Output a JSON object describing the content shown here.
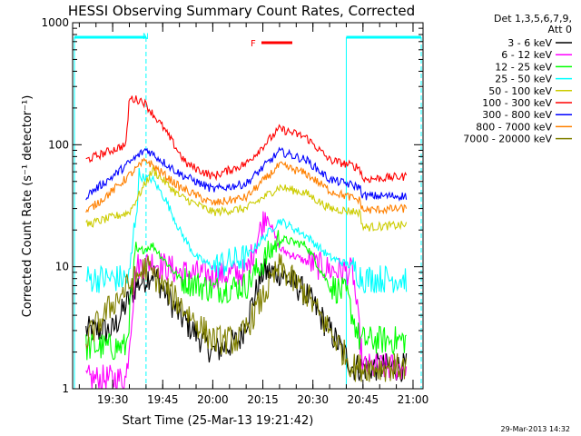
{
  "chart_data": {
    "type": "line",
    "title": "HESSI Observing Summary Count Rates, Corrected",
    "xlabel": "Start Time (25-Mar-13 19:21:42)",
    "ylabel": "Corrected Count Rate (s⁻¹ detector⁻¹)",
    "yscale": "log",
    "ylim": [
      1,
      1000
    ],
    "xlim_minutes": [
      19.3,
      21.05
    ],
    "x_ticks": [
      "19:30",
      "19:45",
      "20:00",
      "20:15",
      "20:30",
      "20:45",
      "21:00"
    ],
    "y_ticks": [
      "1",
      "10",
      "100",
      "1000"
    ],
    "legend_header": [
      "Det 1,3,5,6,7,9,",
      "Att 0"
    ],
    "flags": {
      "N": "N",
      "F": "F"
    },
    "timestamp": "29-Mar-2013 14:32",
    "series": [
      {
        "name": "3 - 6 keV",
        "color": "#000000",
        "x": [
          "19:22",
          "19:30",
          "19:37",
          "19:42",
          "19:50",
          "20:00",
          "20:08",
          "20:15",
          "20:20",
          "20:28",
          "20:35",
          "20:42",
          "20:50",
          "20:58"
        ],
        "values": [
          3,
          3,
          7,
          9,
          4,
          2,
          2.5,
          9,
          9,
          6,
          3,
          1.5,
          1.5,
          1.5
        ]
      },
      {
        "name": "6 - 12 keV",
        "color": "#ff00ff",
        "x": [
          "19:22",
          "19:34",
          "19:37",
          "19:42",
          "19:50",
          "20:00",
          "20:10",
          "20:16",
          "20:20",
          "20:28",
          "20:35",
          "20:42",
          "20:45",
          "20:58"
        ],
        "values": [
          1.2,
          1.2,
          10,
          11,
          9,
          8.5,
          9,
          28,
          14,
          11,
          9.5,
          9,
          1.5,
          1.5
        ]
      },
      {
        "name": "12 - 25 keV",
        "color": "#00ff00",
        "x": [
          "19:22",
          "19:34",
          "19:37",
          "19:42",
          "19:50",
          "20:00",
          "20:10",
          "20:20",
          "20:28",
          "20:35",
          "20:40",
          "20:44",
          "20:58"
        ],
        "values": [
          2.2,
          2.2,
          13,
          15,
          8,
          6.5,
          7,
          17,
          15,
          7,
          6,
          2.5,
          2.5
        ]
      },
      {
        "name": "25 - 50 keV",
        "color": "#00ffff",
        "x": [
          "19:22",
          "19:35",
          "19:38",
          "19:42",
          "19:46",
          "19:50",
          "19:55",
          "20:00",
          "20:10",
          "20:20",
          "20:28",
          "20:35",
          "20:42",
          "20:45",
          "20:58"
        ],
        "values": [
          8,
          8,
          55,
          52,
          35,
          20,
          12,
          10,
          12,
          24,
          18,
          12,
          10,
          8,
          8
        ]
      },
      {
        "name": "50 - 100 keV",
        "color": "#cccc00",
        "x": [
          "19:22",
          "19:35",
          "19:42",
          "19:50",
          "20:00",
          "20:10",
          "20:20",
          "20:28",
          "20:35",
          "20:44",
          "20:45",
          "20:58"
        ],
        "values": [
          22,
          28,
          62,
          38,
          28,
          30,
          45,
          40,
          30,
          28,
          21,
          22
        ]
      },
      {
        "name": "100 - 300 keV",
        "color": "#ff0000",
        "x": [
          "19:22",
          "19:34",
          "19:35",
          "19:39",
          "19:45",
          "19:52",
          "20:00",
          "20:10",
          "20:20",
          "20:28",
          "20:35",
          "20:44",
          "20:45",
          "20:58"
        ],
        "values": [
          75,
          100,
          240,
          230,
          140,
          70,
          55,
          70,
          135,
          115,
          75,
          65,
          52,
          55
        ]
      },
      {
        "name": "300 - 800 keV",
        "color": "#0000ff",
        "x": [
          "19:22",
          "19:30",
          "19:40",
          "19:50",
          "20:00",
          "20:10",
          "20:20",
          "20:28",
          "20:35",
          "20:44",
          "20:45",
          "20:58"
        ],
        "values": [
          38,
          55,
          92,
          58,
          43,
          48,
          88,
          75,
          52,
          45,
          38,
          38
        ]
      },
      {
        "name": "800 - 7000 keV",
        "color": "#ff8000",
        "x": [
          "19:22",
          "19:30",
          "19:40",
          "19:50",
          "20:00",
          "20:10",
          "20:20",
          "20:28",
          "20:35",
          "20:44",
          "20:45",
          "20:58"
        ],
        "values": [
          28,
          42,
          75,
          45,
          33,
          37,
          68,
          58,
          42,
          35,
          29,
          30
        ]
      },
      {
        "name": "7000 - 20000 keV",
        "color": "#808000",
        "x": [
          "19:22",
          "19:30",
          "19:40",
          "19:50",
          "20:00",
          "20:08",
          "20:20",
          "20:28",
          "20:35",
          "20:42",
          "20:58"
        ],
        "values": [
          2.5,
          5,
          10,
          5,
          2.5,
          2.5,
          10,
          6,
          3,
          1.5,
          1.5
        ]
      }
    ]
  }
}
